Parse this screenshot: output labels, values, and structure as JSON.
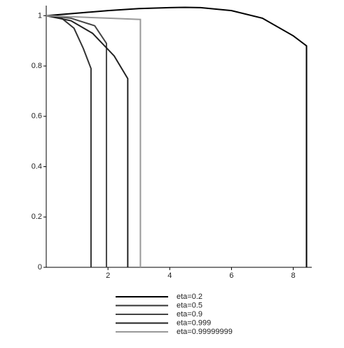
{
  "chart_data": {
    "type": "line",
    "xlim": [
      0,
      8.6
    ],
    "ylim": [
      0,
      1.04
    ],
    "xticks": [
      2,
      4,
      6,
      8
    ],
    "yticks": [
      0,
      0.2,
      0.4,
      0.6,
      0.8,
      1
    ],
    "series": [
      {
        "name": "eta=0.2",
        "color": "#000000",
        "x": [
          0,
          1,
          2,
          3,
          4,
          4.5,
          5,
          6,
          7,
          8,
          8.43,
          8.43
        ],
        "values": [
          1,
          1.01,
          1.02,
          1.028,
          1.032,
          1.033,
          1.032,
          1.02,
          0.99,
          0.92,
          0.88,
          0
        ]
      },
      {
        "name": "eta=0.5",
        "color": "#333333",
        "x": [
          0,
          0.5,
          0.9,
          1.2,
          1.45,
          1.45
        ],
        "values": [
          1,
          0.99,
          0.95,
          0.87,
          0.79,
          0
        ]
      },
      {
        "name": "eta=0.9",
        "color": "#444444",
        "x": [
          0,
          0.8,
          1.57,
          1.95,
          1.95
        ],
        "values": [
          1,
          0.99,
          0.96,
          0.89,
          0
        ]
      },
      {
        "name": "eta=0.999",
        "color": "#222222",
        "x": [
          0,
          0.8,
          1.5,
          2.2,
          2.64,
          2.64
        ],
        "values": [
          1,
          0.98,
          0.93,
          0.84,
          0.75,
          0
        ]
      },
      {
        "name": "eta=0.99999999",
        "color": "#999999",
        "x": [
          0,
          1,
          2,
          3.05,
          3.05
        ],
        "values": [
          1,
          0.995,
          0.99,
          0.985,
          0
        ]
      }
    ]
  }
}
